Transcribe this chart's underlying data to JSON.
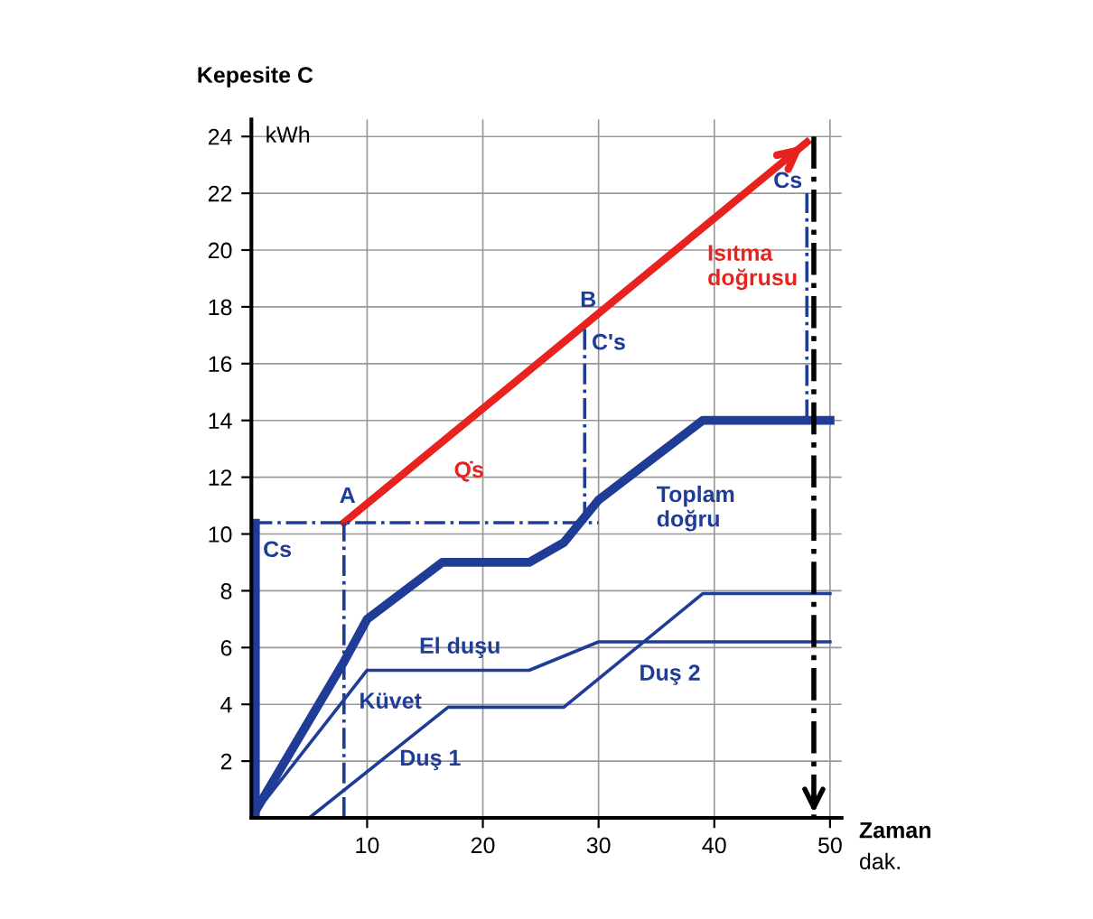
{
  "chart_data": {
    "type": "line",
    "ylabel": "Kepesite C",
    "xlabel": "Zaman",
    "xlim": [
      0,
      51
    ],
    "ylim": [
      0,
      24.6
    ],
    "xticks": [
      10,
      20,
      30,
      40,
      50
    ],
    "yticks": [
      2,
      4,
      6,
      8,
      10,
      12,
      14,
      16,
      18,
      20,
      22,
      24
    ],
    "grid": true,
    "marker": "none",
    "series": [
      {
        "color": "#1f3c96",
        "x": [
          0,
          8,
          10,
          16.5,
          24,
          27,
          30,
          39,
          50
        ],
        "values": [
          0,
          5.5,
          7,
          9,
          9,
          9.7,
          11.2,
          14,
          14
        ]
      },
      {
        "color": "#1f3c96",
        "x": [
          0,
          10,
          24,
          30,
          50
        ],
        "values": [
          0,
          5.2,
          5.2,
          6.2,
          6.2
        ]
      },
      {
        "color": "#1f3c96",
        "x": [
          5,
          17,
          27,
          39,
          50
        ],
        "values": [
          0,
          3.9,
          3.9,
          7.9,
          7.9
        ]
      },
      {
        "color": "#e8231f",
        "x": [
          8,
          48
        ],
        "values": [
          10.4,
          23.8
        ]
      },
      {
        "color": "#1f3c96",
        "x": [
          0.4,
          0.4
        ],
        "values": [
          0,
          10.4
        ]
      },
      {
        "color": "#1f3c96",
        "line_style": "dashed",
        "x": [
          0,
          30
        ],
        "values": [
          10.4,
          10.4
        ]
      },
      {
        "color": "#1f3c96",
        "line_style": "dashed",
        "x": [
          8,
          8
        ],
        "values": [
          0,
          10.4
        ]
      },
      {
        "color": "#1f3c96",
        "line_style": "dashed",
        "x": [
          28.8,
          28.8
        ],
        "values": [
          10.4,
          17.3
        ]
      },
      {
        "color": "#1f3c96",
        "line_style": "dashed",
        "x": [
          48,
          48
        ],
        "values": [
          14,
          22
        ]
      },
      {
        "color": "#000000",
        "line_style": "dashed",
        "x": [
          48.6,
          48.6
        ],
        "values": [
          24,
          0
        ]
      }
    ],
    "annotations": [
      "kWh",
      "dak.",
      {
        "text": "A",
        "x": 8,
        "y": 10.4
      },
      {
        "text": "B",
        "x": 28.8,
        "y": 17.3
      },
      {
        "text": "C's",
        "x": 28.8,
        "y": 17.3
      },
      {
        "text": "Cs",
        "x": 0.4,
        "y": 10.4
      },
      {
        "text": "Cs",
        "x": 48,
        "y": 22
      },
      {
        "text": "Q̇s",
        "x": 17,
        "y": 13.4
      },
      {
        "text": "Isıtma\ndoğrusu",
        "x": 40,
        "y": 21.1
      },
      {
        "text": "Toplam\ndoğru",
        "x": 33,
        "y": 12.1
      },
      {
        "text": "El duşu",
        "x": 15,
        "y": 5.2
      },
      {
        "text": "Küvet",
        "x": 8,
        "y": 4.16
      },
      {
        "text": "Duş 1",
        "x": 11,
        "y": 1.95
      },
      {
        "text": "Duş 2",
        "x": 33,
        "y": 5.85
      }
    ]
  }
}
